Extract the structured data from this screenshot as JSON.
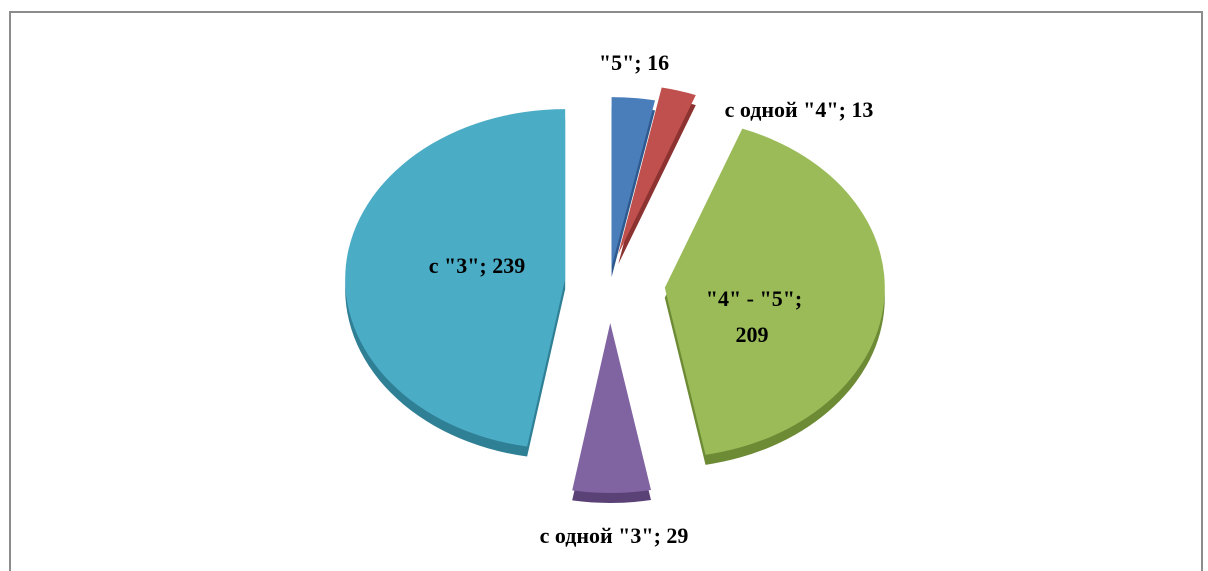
{
  "chart_data": {
    "type": "pie",
    "exploded": true,
    "title": "",
    "slices": [
      {
        "label": "\"5\"",
        "value": 16,
        "color": "#4a7ebb",
        "dark": "#2e5a8f"
      },
      {
        "label": "с одной \"4\"",
        "value": 13,
        "color": "#c0504d",
        "dark": "#8c3331"
      },
      {
        "label": "\"4\" - \"5\"",
        "value": 209,
        "color": "#9bbb59",
        "dark": "#6d8a35"
      },
      {
        "label": "с одной \"3\"",
        "value": 29,
        "color": "#8064a2",
        "dark": "#5a4277"
      },
      {
        "label": "с \"3\"",
        "value": 239,
        "color": "#4bacc6",
        "dark": "#2f7f95"
      }
    ],
    "data_labels": [
      {
        "text": "\"5\"; 16"
      },
      {
        "text": "с одной \"4\"; 13"
      },
      {
        "lines": [
          "\"4\" - \"5\";",
          "209"
        ]
      },
      {
        "text": "с одной \"3\"; 29"
      },
      {
        "text": "с \"3\"; 239"
      }
    ]
  }
}
